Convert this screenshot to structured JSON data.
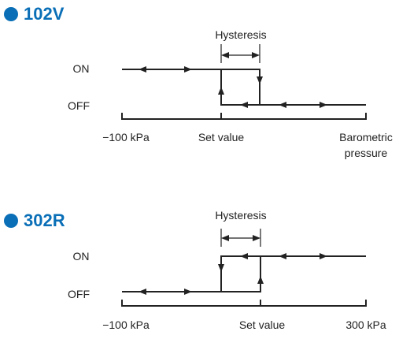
{
  "sections": [
    {
      "title": "102V",
      "hysteresis": "Hysteresis",
      "on": "ON",
      "off": "OFF",
      "axis_labels": [
        "−100 kPa",
        "Set value",
        "Barometric pressure"
      ]
    },
    {
      "title": "302R",
      "hysteresis": "Hysteresis",
      "on": "ON",
      "off": "OFF",
      "axis_labels": [
        "−100 kPa",
        "Set value",
        "300 kPa"
      ]
    }
  ]
}
